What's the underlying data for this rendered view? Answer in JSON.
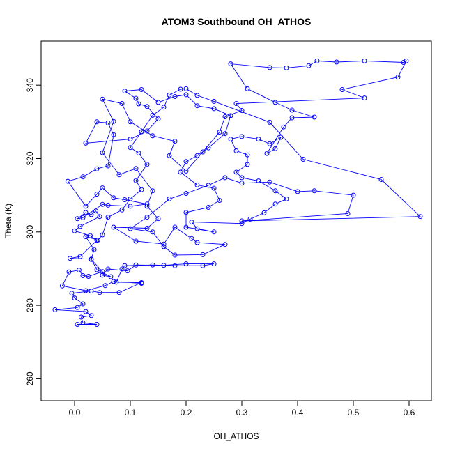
{
  "chart_data": {
    "type": "scatter",
    "title": "ATOM3 Southbound OH_ATHOS",
    "xlabel": "OH_ATHOS",
    "ylabel": "Theta (K)",
    "xlim": [
      -0.06,
      0.64
    ],
    "ylim": [
      254,
      352
    ],
    "xticks": [
      0.0,
      0.1,
      0.2,
      0.3,
      0.4,
      0.5,
      0.6
    ],
    "xtick_labels": [
      "0.0",
      "0.1",
      "0.2",
      "0.3",
      "0.4",
      "0.5",
      "0.6"
    ],
    "yticks": [
      260,
      280,
      300,
      320,
      340
    ],
    "ytick_labels": [
      "260",
      "280",
      "300",
      "320",
      "340"
    ],
    "grid": false,
    "legend": "none",
    "series": [
      {
        "color": "#0000ff",
        "marker": "open-circle",
        "line": true,
        "points": [
          [
            0.005,
            274.8
          ],
          [
            0.04,
            274.8
          ],
          [
            0.015,
            275.2
          ],
          [
            0.012,
            276.8
          ],
          [
            0.03,
            277.2
          ],
          [
            0.02,
            278.3
          ],
          [
            -0.035,
            278.8
          ],
          [
            0.005,
            279.4
          ],
          [
            0.015,
            280.4
          ],
          [
            0.0,
            282.0
          ],
          [
            -0.005,
            283.3
          ],
          [
            0.03,
            283.9
          ],
          [
            0.045,
            283.5
          ],
          [
            0.08,
            283.5
          ],
          [
            0.12,
            286.2
          ],
          [
            0.075,
            286.3
          ],
          [
            0.085,
            289.9
          ],
          [
            0.09,
            290.8
          ],
          [
            0.14,
            291.0
          ],
          [
            0.18,
            290.8
          ],
          [
            0.23,
            290.8
          ],
          [
            0.25,
            291.3
          ],
          [
            0.2,
            291.3
          ],
          [
            0.16,
            290.9
          ],
          [
            0.11,
            291.0
          ],
          [
            0.095,
            289.4
          ],
          [
            0.06,
            289.9
          ],
          [
            0.05,
            288.2
          ],
          [
            0.065,
            287.8
          ],
          [
            0.04,
            289.7
          ],
          [
            0.03,
            292.6
          ],
          [
            -0.008,
            292.8
          ],
          [
            0.01,
            293.3
          ],
          [
            0.04,
            297.7
          ],
          [
            0.028,
            299.0
          ],
          [
            0.0,
            300.3
          ],
          [
            0.01,
            301.5
          ],
          [
            0.045,
            304.2
          ],
          [
            0.038,
            305.7
          ],
          [
            0.03,
            304.7
          ],
          [
            0.02,
            305.3
          ],
          [
            0.005,
            303.6
          ],
          [
            0.015,
            303.9
          ],
          [
            0.05,
            307.5
          ],
          [
            0.06,
            307.3
          ],
          [
            0.1,
            307.0
          ],
          [
            0.13,
            307.6
          ],
          [
            0.09,
            308.8
          ],
          [
            0.07,
            309.3
          ],
          [
            0.05,
            312.0
          ],
          [
            0.04,
            310.3
          ],
          [
            0.02,
            307.0
          ],
          [
            -0.012,
            313.8
          ],
          [
            0.015,
            315.0
          ],
          [
            0.04,
            317.2
          ],
          [
            0.06,
            318.0
          ],
          [
            0.07,
            326.5
          ],
          [
            0.06,
            329.7
          ],
          [
            0.04,
            330.0
          ],
          [
            0.02,
            324.2
          ],
          [
            0.1,
            325.3
          ],
          [
            0.13,
            327.5
          ],
          [
            0.15,
            330.8
          ],
          [
            0.13,
            334.2
          ],
          [
            0.115,
            334.9
          ],
          [
            0.11,
            336.4
          ],
          [
            0.09,
            338.4
          ],
          [
            0.12,
            338.8
          ],
          [
            0.15,
            335.3
          ],
          [
            0.18,
            336.9
          ],
          [
            0.2,
            337.4
          ],
          [
            0.22,
            334.4
          ],
          [
            0.25,
            333.6
          ],
          [
            0.28,
            331.7
          ],
          [
            0.27,
            326.8
          ],
          [
            0.24,
            322.9
          ],
          [
            0.22,
            320.8
          ],
          [
            0.2,
            319.2
          ],
          [
            0.19,
            316.3
          ],
          [
            0.22,
            312.8
          ],
          [
            0.25,
            311.9
          ],
          [
            0.26,
            308.6
          ],
          [
            0.24,
            306.7
          ],
          [
            0.2,
            305.3
          ],
          [
            0.2,
            301.3
          ],
          [
            0.25,
            300.0
          ],
          [
            0.22,
            300.9
          ],
          [
            0.21,
            302.7
          ],
          [
            0.3,
            302.3
          ],
          [
            0.315,
            303.5
          ],
          [
            0.34,
            305.2
          ],
          [
            0.36,
            307.6
          ],
          [
            0.38,
            309.0
          ],
          [
            0.36,
            311.2
          ],
          [
            0.33,
            313.9
          ],
          [
            0.3,
            314.8
          ],
          [
            0.29,
            316.3
          ],
          [
            0.31,
            318.4
          ],
          [
            0.31,
            321.0
          ],
          [
            0.29,
            322.1
          ],
          [
            0.28,
            325.3
          ],
          [
            0.3,
            326.0
          ],
          [
            0.33,
            325.3
          ],
          [
            0.35,
            324.0
          ],
          [
            0.37,
            325.8
          ],
          [
            0.36,
            322.7
          ],
          [
            0.345,
            321.4
          ],
          [
            0.375,
            328.6
          ],
          [
            0.39,
            331.1
          ],
          [
            0.43,
            331.3
          ],
          [
            0.39,
            333.2
          ],
          [
            0.36,
            335.3
          ],
          [
            0.31,
            339.0
          ],
          [
            0.28,
            345.8
          ],
          [
            0.35,
            344.8
          ],
          [
            0.38,
            344.7
          ],
          [
            0.42,
            345.3
          ],
          [
            0.435,
            346.6
          ],
          [
            0.47,
            346.3
          ],
          [
            0.52,
            346.6
          ],
          [
            0.59,
            346.2
          ],
          [
            0.595,
            346.6
          ],
          [
            0.58,
            342.2
          ],
          [
            0.48,
            338.8
          ],
          [
            0.52,
            336.5
          ],
          [
            0.29,
            335.0
          ],
          [
            0.3,
            333.1
          ],
          [
            0.27,
            331.4
          ],
          [
            0.26,
            327.2
          ],
          [
            0.23,
            321.8
          ],
          [
            0.2,
            316.6
          ],
          [
            0.17,
            320.8
          ],
          [
            0.18,
            324.7
          ],
          [
            0.14,
            326.2
          ],
          [
            0.1,
            330.0
          ],
          [
            0.085,
            335.0
          ],
          [
            0.05,
            336.2
          ],
          [
            0.07,
            330.1
          ],
          [
            0.05,
            321.6
          ],
          [
            0.08,
            315.6
          ],
          [
            0.11,
            317.3
          ],
          [
            0.14,
            311.2
          ],
          [
            0.13,
            307.0
          ],
          [
            0.15,
            303.6
          ],
          [
            0.13,
            301.0
          ],
          [
            0.07,
            301.3
          ],
          [
            0.11,
            297.5
          ],
          [
            0.16,
            296.7
          ],
          [
            0.18,
            301.3
          ],
          [
            0.21,
            298.2
          ],
          [
            0.22,
            297.1
          ],
          [
            0.27,
            296.6
          ],
          [
            0.23,
            293.8
          ],
          [
            0.18,
            293.7
          ],
          [
            0.16,
            296.0
          ],
          [
            0.14,
            300.0
          ],
          [
            0.1,
            300.9
          ],
          [
            0.13,
            304.0
          ],
          [
            0.17,
            309.0
          ],
          [
            0.2,
            310.5
          ],
          [
            0.24,
            312.7
          ],
          [
            0.27,
            314.8
          ],
          [
            0.3,
            313.3
          ],
          [
            0.35,
            313.6
          ],
          [
            0.4,
            311.0
          ],
          [
            0.43,
            311.2
          ],
          [
            0.5,
            310.0
          ],
          [
            0.49,
            305.0
          ],
          [
            0.3,
            303.0
          ],
          [
            0.62,
            304.2
          ],
          [
            0.55,
            314.3
          ],
          [
            0.41,
            319.8
          ],
          [
            0.35,
            329.9
          ],
          [
            0.25,
            335.6
          ],
          [
            0.22,
            337.2
          ],
          [
            0.2,
            339.0
          ],
          [
            0.19,
            338.9
          ],
          [
            0.17,
            337.3
          ],
          [
            0.16,
            334.0
          ],
          [
            0.14,
            331.8
          ],
          [
            0.12,
            327.3
          ],
          [
            0.1,
            323.0
          ],
          [
            0.115,
            321.5
          ],
          [
            0.13,
            318.4
          ],
          [
            0.11,
            314.0
          ],
          [
            0.12,
            311.5
          ],
          [
            0.1,
            309.0
          ],
          [
            0.085,
            306.0
          ],
          [
            0.06,
            304.0
          ],
          [
            0.05,
            299.2
          ],
          [
            0.042,
            297.8
          ],
          [
            0.02,
            298.7
          ],
          [
            0.035,
            295.2
          ],
          [
            0.03,
            292.5
          ],
          [
            0.05,
            289.2
          ],
          [
            0.025,
            287.9
          ],
          [
            0.015,
            288.1
          ],
          [
            0.008,
            289.6
          ],
          [
            -0.01,
            289.1
          ],
          [
            -0.022,
            285.3
          ],
          [
            0.02,
            284.0
          ],
          [
            0.055,
            285.4
          ],
          [
            0.07,
            286.5
          ],
          [
            0.12,
            286.0
          ]
        ]
      }
    ]
  }
}
